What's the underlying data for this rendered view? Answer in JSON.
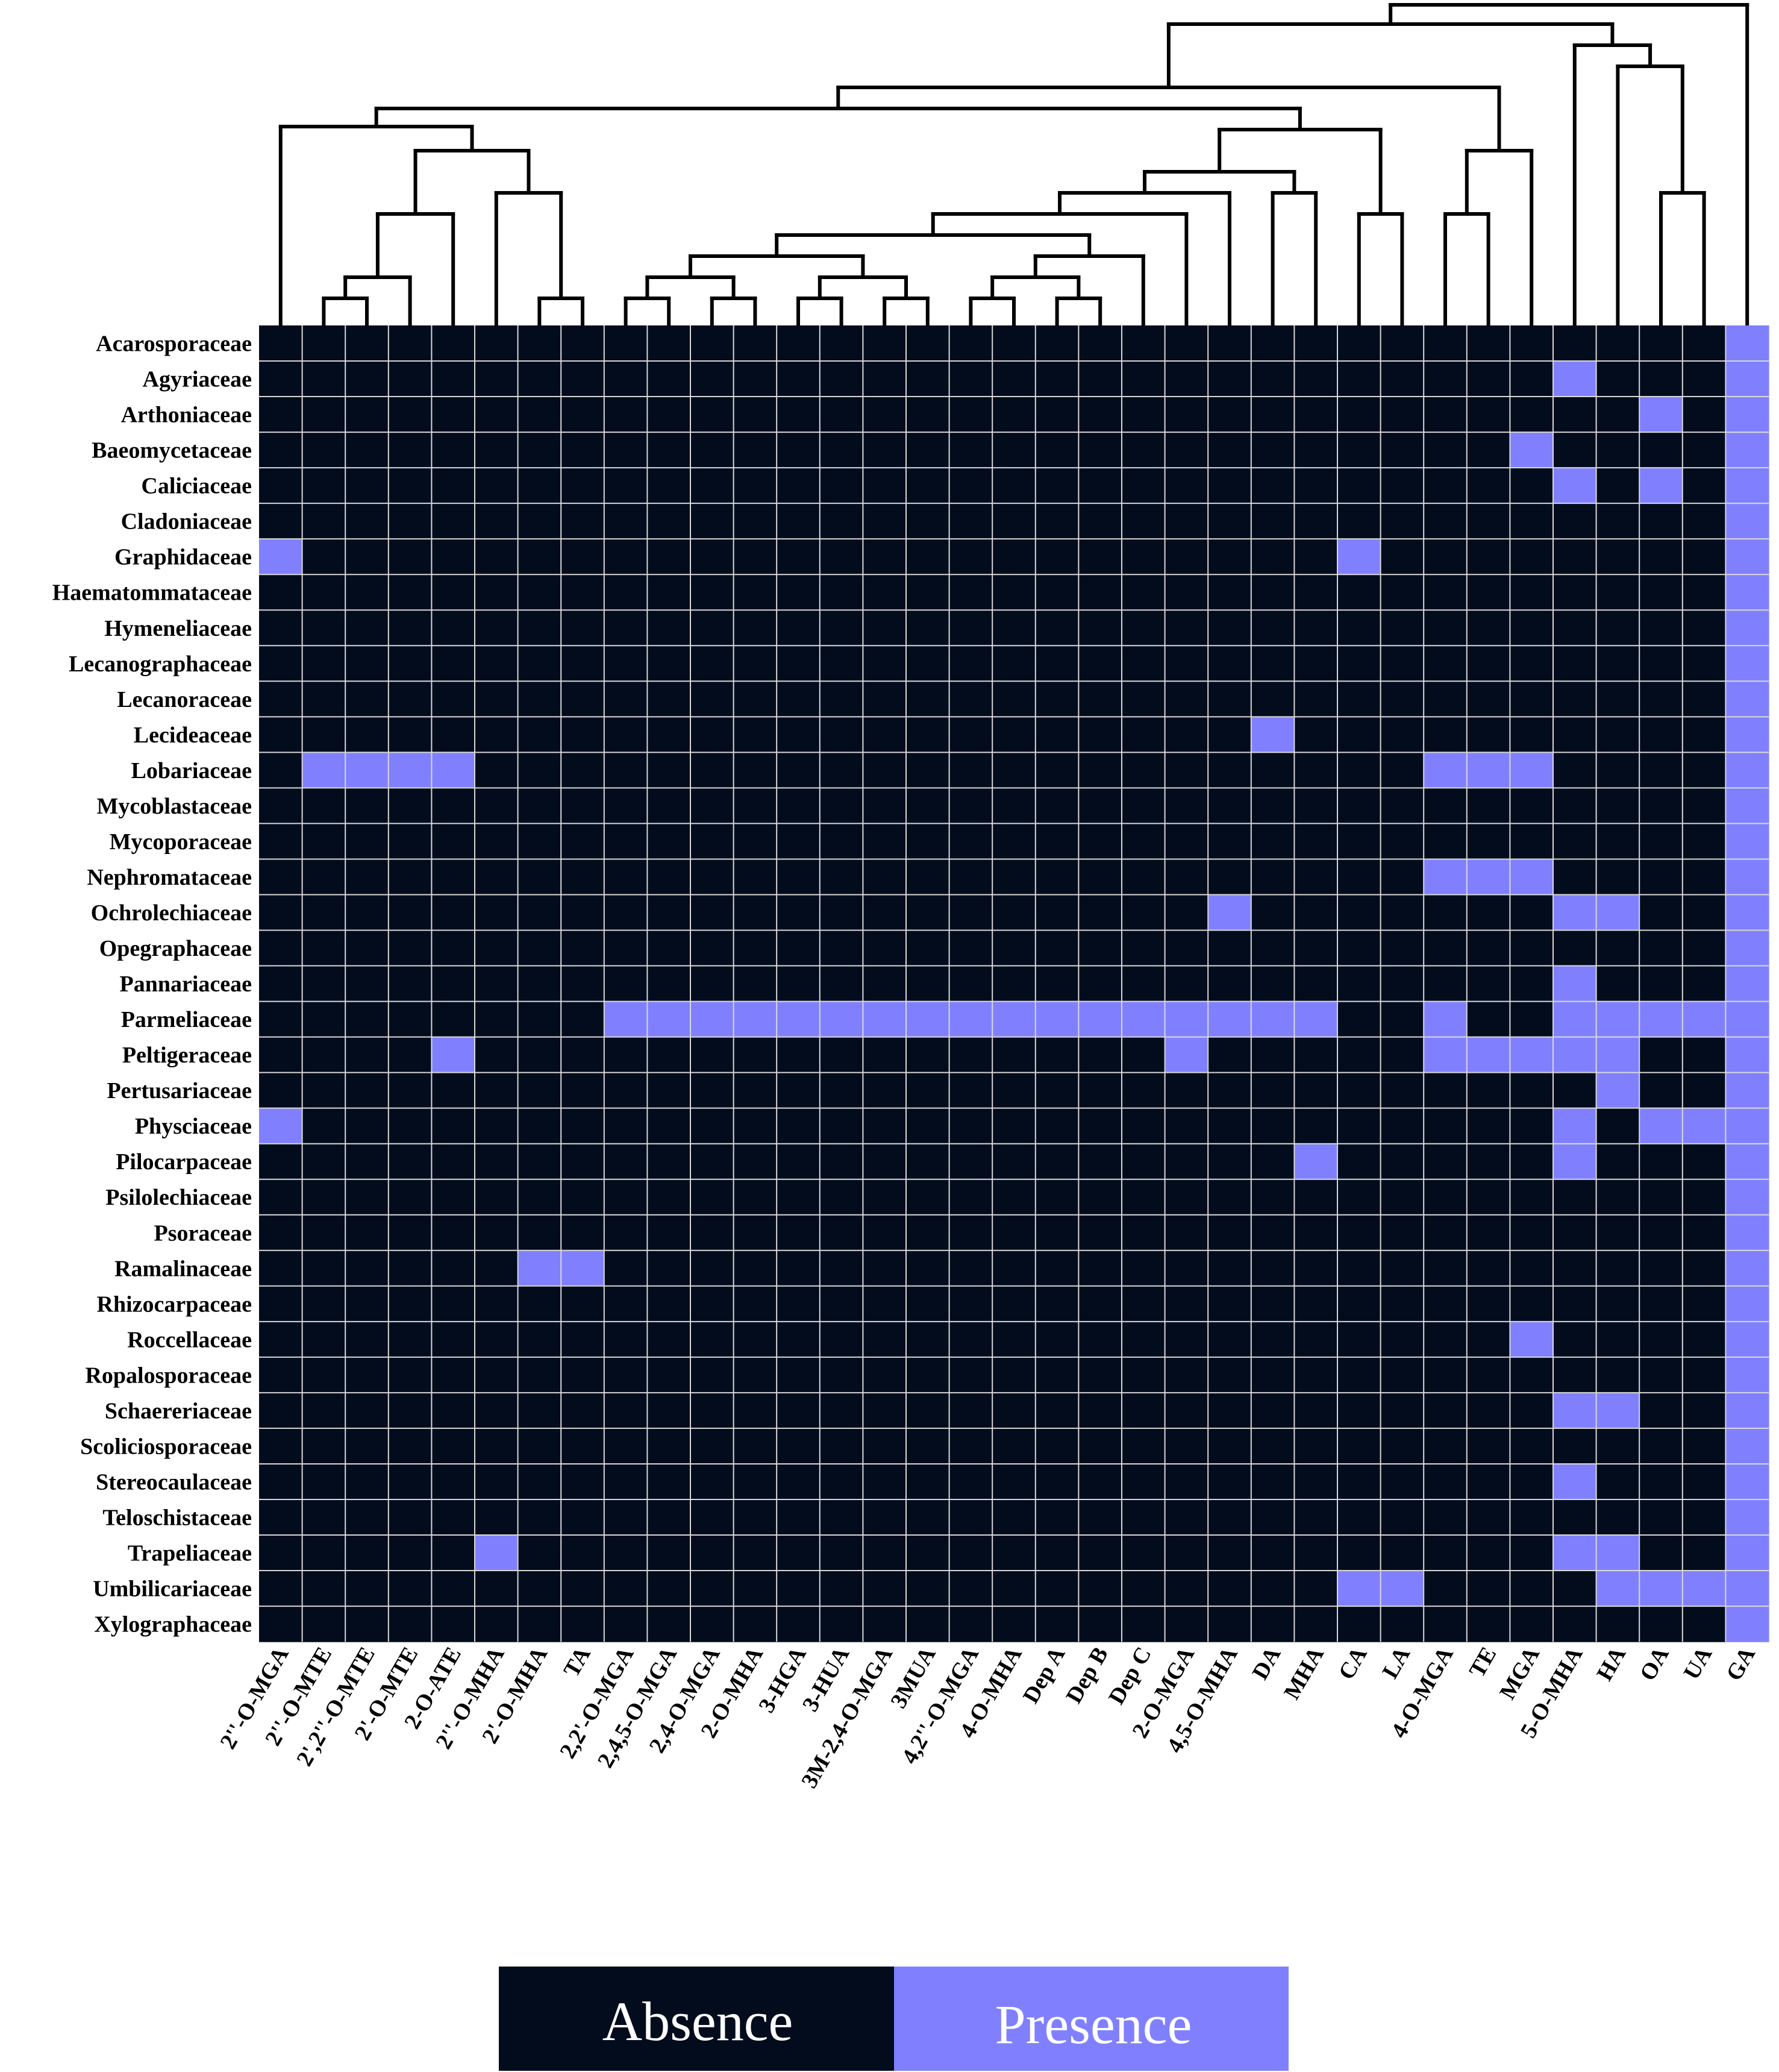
{
  "chart_data": {
    "type": "heatmap",
    "title": "",
    "rows": [
      "Acarosporaceae",
      "Agyriaceae",
      "Arthoniaceae",
      "Baeomycetaceae",
      "Caliciaceae",
      "Cladoniaceae",
      "Graphidaceae",
      "Haematommataceae",
      "Hymeneliaceae",
      "Lecanographaceae",
      "Lecanoraceae",
      "Lecideaceae",
      "Lobariaceae",
      "Mycoblastaceae",
      "Mycoporaceae",
      "Nephromataceae",
      "Ochrolechiaceae",
      "Opegraphaceae",
      "Pannariaceae",
      "Parmeliaceae",
      "Peltigeraceae",
      "Pertusariaceae",
      "Physciaceae",
      "Pilocarpaceae",
      "Psilolechiaceae",
      "Psoraceae",
      "Ramalinaceae",
      "Rhizocarpaceae",
      "Roccellaceae",
      "Ropalosporaceae",
      "Schaereriaceae",
      "Scoliciosporaceae",
      "Stereocaulaceae",
      "Teloschistaceae",
      "Trapeliaceae",
      "Umbilicariaceae",
      "Xylographaceae"
    ],
    "columns": [
      "2''-O-MGA",
      "2''-O-MTE",
      "2',2''-O-MTE",
      "2'-O-MTE",
      "2-O-ATE",
      "2''-O-MHA",
      "2'-O-MHA",
      "TA",
      "2,2'-O-MGA",
      "2,4,5-O-MGA",
      "2,4-O-MGA",
      "2-O-MHA",
      "3-HGA",
      "3-HUA",
      "3M-2,4-O-MGA",
      "3MUA",
      "4,2''-O-MGA",
      "4-O-MHA",
      "Dep A",
      "Dep B",
      "Dep C",
      "2-O-MGA",
      "4,5-O-MHA",
      "DA",
      "MHA",
      "CA",
      "LA",
      "4-O-MGA",
      "TE",
      "MGA",
      "5-O-MHA",
      "HA",
      "OA",
      "UA",
      "GA"
    ],
    "values": [
      [
        0,
        0,
        0,
        0,
        0,
        0,
        0,
        0,
        0,
        0,
        0,
        0,
        0,
        0,
        0,
        0,
        0,
        0,
        0,
        0,
        0,
        0,
        0,
        0,
        0,
        0,
        0,
        0,
        0,
        0,
        0,
        0,
        0,
        0,
        1
      ],
      [
        0,
        0,
        0,
        0,
        0,
        0,
        0,
        0,
        0,
        0,
        0,
        0,
        0,
        0,
        0,
        0,
        0,
        0,
        0,
        0,
        0,
        0,
        0,
        0,
        0,
        0,
        0,
        0,
        0,
        0,
        1,
        0,
        0,
        0,
        1
      ],
      [
        0,
        0,
        0,
        0,
        0,
        0,
        0,
        0,
        0,
        0,
        0,
        0,
        0,
        0,
        0,
        0,
        0,
        0,
        0,
        0,
        0,
        0,
        0,
        0,
        0,
        0,
        0,
        0,
        0,
        0,
        0,
        0,
        1,
        0,
        1
      ],
      [
        0,
        0,
        0,
        0,
        0,
        0,
        0,
        0,
        0,
        0,
        0,
        0,
        0,
        0,
        0,
        0,
        0,
        0,
        0,
        0,
        0,
        0,
        0,
        0,
        0,
        0,
        0,
        0,
        0,
        1,
        0,
        0,
        0,
        0,
        1
      ],
      [
        0,
        0,
        0,
        0,
        0,
        0,
        0,
        0,
        0,
        0,
        0,
        0,
        0,
        0,
        0,
        0,
        0,
        0,
        0,
        0,
        0,
        0,
        0,
        0,
        0,
        0,
        0,
        0,
        0,
        0,
        1,
        0,
        1,
        0,
        1
      ],
      [
        0,
        0,
        0,
        0,
        0,
        0,
        0,
        0,
        0,
        0,
        0,
        0,
        0,
        0,
        0,
        0,
        0,
        0,
        0,
        0,
        0,
        0,
        0,
        0,
        0,
        0,
        0,
        0,
        0,
        0,
        0,
        0,
        0,
        0,
        1
      ],
      [
        1,
        0,
        0,
        0,
        0,
        0,
        0,
        0,
        0,
        0,
        0,
        0,
        0,
        0,
        0,
        0,
        0,
        0,
        0,
        0,
        0,
        0,
        0,
        0,
        0,
        1,
        0,
        0,
        0,
        0,
        0,
        0,
        0,
        0,
        1
      ],
      [
        0,
        0,
        0,
        0,
        0,
        0,
        0,
        0,
        0,
        0,
        0,
        0,
        0,
        0,
        0,
        0,
        0,
        0,
        0,
        0,
        0,
        0,
        0,
        0,
        0,
        0,
        0,
        0,
        0,
        0,
        0,
        0,
        0,
        0,
        1
      ],
      [
        0,
        0,
        0,
        0,
        0,
        0,
        0,
        0,
        0,
        0,
        0,
        0,
        0,
        0,
        0,
        0,
        0,
        0,
        0,
        0,
        0,
        0,
        0,
        0,
        0,
        0,
        0,
        0,
        0,
        0,
        0,
        0,
        0,
        0,
        1
      ],
      [
        0,
        0,
        0,
        0,
        0,
        0,
        0,
        0,
        0,
        0,
        0,
        0,
        0,
        0,
        0,
        0,
        0,
        0,
        0,
        0,
        0,
        0,
        0,
        0,
        0,
        0,
        0,
        0,
        0,
        0,
        0,
        0,
        0,
        0,
        1
      ],
      [
        0,
        0,
        0,
        0,
        0,
        0,
        0,
        0,
        0,
        0,
        0,
        0,
        0,
        0,
        0,
        0,
        0,
        0,
        0,
        0,
        0,
        0,
        0,
        0,
        0,
        0,
        0,
        0,
        0,
        0,
        0,
        0,
        0,
        0,
        1
      ],
      [
        0,
        0,
        0,
        0,
        0,
        0,
        0,
        0,
        0,
        0,
        0,
        0,
        0,
        0,
        0,
        0,
        0,
        0,
        0,
        0,
        0,
        0,
        0,
        1,
        0,
        0,
        0,
        0,
        0,
        0,
        0,
        0,
        0,
        0,
        1
      ],
      [
        0,
        1,
        1,
        1,
        1,
        0,
        0,
        0,
        0,
        0,
        0,
        0,
        0,
        0,
        0,
        0,
        0,
        0,
        0,
        0,
        0,
        0,
        0,
        0,
        0,
        0,
        0,
        1,
        1,
        1,
        0,
        0,
        0,
        0,
        1
      ],
      [
        0,
        0,
        0,
        0,
        0,
        0,
        0,
        0,
        0,
        0,
        0,
        0,
        0,
        0,
        0,
        0,
        0,
        0,
        0,
        0,
        0,
        0,
        0,
        0,
        0,
        0,
        0,
        0,
        0,
        0,
        0,
        0,
        0,
        0,
        1
      ],
      [
        0,
        0,
        0,
        0,
        0,
        0,
        0,
        0,
        0,
        0,
        0,
        0,
        0,
        0,
        0,
        0,
        0,
        0,
        0,
        0,
        0,
        0,
        0,
        0,
        0,
        0,
        0,
        0,
        0,
        0,
        0,
        0,
        0,
        0,
        1
      ],
      [
        0,
        0,
        0,
        0,
        0,
        0,
        0,
        0,
        0,
        0,
        0,
        0,
        0,
        0,
        0,
        0,
        0,
        0,
        0,
        0,
        0,
        0,
        0,
        0,
        0,
        0,
        0,
        1,
        1,
        1,
        0,
        0,
        0,
        0,
        1
      ],
      [
        0,
        0,
        0,
        0,
        0,
        0,
        0,
        0,
        0,
        0,
        0,
        0,
        0,
        0,
        0,
        0,
        0,
        0,
        0,
        0,
        0,
        0,
        1,
        0,
        0,
        0,
        0,
        0,
        0,
        0,
        1,
        1,
        0,
        0,
        1
      ],
      [
        0,
        0,
        0,
        0,
        0,
        0,
        0,
        0,
        0,
        0,
        0,
        0,
        0,
        0,
        0,
        0,
        0,
        0,
        0,
        0,
        0,
        0,
        0,
        0,
        0,
        0,
        0,
        0,
        0,
        0,
        0,
        0,
        0,
        0,
        1
      ],
      [
        0,
        0,
        0,
        0,
        0,
        0,
        0,
        0,
        0,
        0,
        0,
        0,
        0,
        0,
        0,
        0,
        0,
        0,
        0,
        0,
        0,
        0,
        0,
        0,
        0,
        0,
        0,
        0,
        0,
        0,
        1,
        0,
        0,
        0,
        1
      ],
      [
        0,
        0,
        0,
        0,
        0,
        0,
        0,
        0,
        1,
        1,
        1,
        1,
        1,
        1,
        1,
        1,
        1,
        1,
        1,
        1,
        1,
        1,
        1,
        1,
        1,
        0,
        0,
        1,
        0,
        0,
        1,
        1,
        1,
        1,
        1
      ],
      [
        0,
        0,
        0,
        0,
        1,
        0,
        0,
        0,
        0,
        0,
        0,
        0,
        0,
        0,
        0,
        0,
        0,
        0,
        0,
        0,
        0,
        1,
        0,
        0,
        0,
        0,
        0,
        1,
        1,
        1,
        1,
        1,
        0,
        0,
        1
      ],
      [
        0,
        0,
        0,
        0,
        0,
        0,
        0,
        0,
        0,
        0,
        0,
        0,
        0,
        0,
        0,
        0,
        0,
        0,
        0,
        0,
        0,
        0,
        0,
        0,
        0,
        0,
        0,
        0,
        0,
        0,
        0,
        1,
        0,
        0,
        1
      ],
      [
        1,
        0,
        0,
        0,
        0,
        0,
        0,
        0,
        0,
        0,
        0,
        0,
        0,
        0,
        0,
        0,
        0,
        0,
        0,
        0,
        0,
        0,
        0,
        0,
        0,
        0,
        0,
        0,
        0,
        0,
        1,
        0,
        1,
        1,
        1
      ],
      [
        0,
        0,
        0,
        0,
        0,
        0,
        0,
        0,
        0,
        0,
        0,
        0,
        0,
        0,
        0,
        0,
        0,
        0,
        0,
        0,
        0,
        0,
        0,
        0,
        1,
        0,
        0,
        0,
        0,
        0,
        1,
        0,
        0,
        0,
        1
      ],
      [
        0,
        0,
        0,
        0,
        0,
        0,
        0,
        0,
        0,
        0,
        0,
        0,
        0,
        0,
        0,
        0,
        0,
        0,
        0,
        0,
        0,
        0,
        0,
        0,
        0,
        0,
        0,
        0,
        0,
        0,
        0,
        0,
        0,
        0,
        1
      ],
      [
        0,
        0,
        0,
        0,
        0,
        0,
        0,
        0,
        0,
        0,
        0,
        0,
        0,
        0,
        0,
        0,
        0,
        0,
        0,
        0,
        0,
        0,
        0,
        0,
        0,
        0,
        0,
        0,
        0,
        0,
        0,
        0,
        0,
        0,
        1
      ],
      [
        0,
        0,
        0,
        0,
        0,
        0,
        1,
        1,
        0,
        0,
        0,
        0,
        0,
        0,
        0,
        0,
        0,
        0,
        0,
        0,
        0,
        0,
        0,
        0,
        0,
        0,
        0,
        0,
        0,
        0,
        0,
        0,
        0,
        0,
        1
      ],
      [
        0,
        0,
        0,
        0,
        0,
        0,
        0,
        0,
        0,
        0,
        0,
        0,
        0,
        0,
        0,
        0,
        0,
        0,
        0,
        0,
        0,
        0,
        0,
        0,
        0,
        0,
        0,
        0,
        0,
        0,
        0,
        0,
        0,
        0,
        1
      ],
      [
        0,
        0,
        0,
        0,
        0,
        0,
        0,
        0,
        0,
        0,
        0,
        0,
        0,
        0,
        0,
        0,
        0,
        0,
        0,
        0,
        0,
        0,
        0,
        0,
        0,
        0,
        0,
        0,
        0,
        1,
        0,
        0,
        0,
        0,
        1
      ],
      [
        0,
        0,
        0,
        0,
        0,
        0,
        0,
        0,
        0,
        0,
        0,
        0,
        0,
        0,
        0,
        0,
        0,
        0,
        0,
        0,
        0,
        0,
        0,
        0,
        0,
        0,
        0,
        0,
        0,
        0,
        0,
        0,
        0,
        0,
        1
      ],
      [
        0,
        0,
        0,
        0,
        0,
        0,
        0,
        0,
        0,
        0,
        0,
        0,
        0,
        0,
        0,
        0,
        0,
        0,
        0,
        0,
        0,
        0,
        0,
        0,
        0,
        0,
        0,
        0,
        0,
        0,
        1,
        1,
        0,
        0,
        1
      ],
      [
        0,
        0,
        0,
        0,
        0,
        0,
        0,
        0,
        0,
        0,
        0,
        0,
        0,
        0,
        0,
        0,
        0,
        0,
        0,
        0,
        0,
        0,
        0,
        0,
        0,
        0,
        0,
        0,
        0,
        0,
        0,
        0,
        0,
        0,
        1
      ],
      [
        0,
        0,
        0,
        0,
        0,
        0,
        0,
        0,
        0,
        0,
        0,
        0,
        0,
        0,
        0,
        0,
        0,
        0,
        0,
        0,
        0,
        0,
        0,
        0,
        0,
        0,
        0,
        0,
        0,
        0,
        1,
        0,
        0,
        0,
        1
      ],
      [
        0,
        0,
        0,
        0,
        0,
        0,
        0,
        0,
        0,
        0,
        0,
        0,
        0,
        0,
        0,
        0,
        0,
        0,
        0,
        0,
        0,
        0,
        0,
        0,
        0,
        0,
        0,
        0,
        0,
        0,
        0,
        0,
        0,
        0,
        1
      ],
      [
        0,
        0,
        0,
        0,
        0,
        1,
        0,
        0,
        0,
        0,
        0,
        0,
        0,
        0,
        0,
        0,
        0,
        0,
        0,
        0,
        0,
        0,
        0,
        0,
        0,
        0,
        0,
        0,
        0,
        0,
        1,
        1,
        0,
        0,
        1
      ],
      [
        0,
        0,
        0,
        0,
        0,
        0,
        0,
        0,
        0,
        0,
        0,
        0,
        0,
        0,
        0,
        0,
        0,
        0,
        0,
        0,
        0,
        0,
        0,
        0,
        0,
        1,
        1,
        0,
        0,
        0,
        0,
        1,
        1,
        1,
        1
      ],
      [
        0,
        0,
        0,
        0,
        0,
        0,
        0,
        0,
        0,
        0,
        0,
        0,
        0,
        0,
        0,
        0,
        0,
        0,
        0,
        0,
        0,
        0,
        0,
        0,
        0,
        0,
        0,
        0,
        0,
        0,
        0,
        0,
        0,
        0,
        1
      ]
    ],
    "legend": [
      {
        "label": "Absence",
        "value": 0,
        "color": "#020c1c"
      },
      {
        "label": "Presence",
        "value": 1,
        "color": "#8080ff"
      }
    ],
    "dendrogram": "hierarchical clustering of columns (drawn above the heatmap)",
    "grid": true
  },
  "colors": {
    "absence": "#020c1c",
    "presence": "#8080ff",
    "grid_line": "#d8d8d8",
    "dendrogram": "#000000"
  }
}
